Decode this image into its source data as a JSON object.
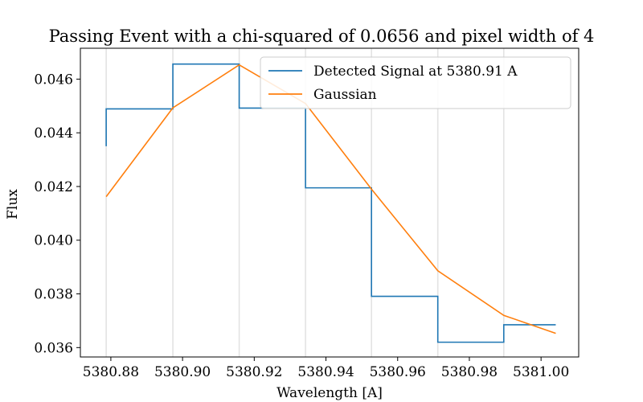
{
  "chart_data": {
    "type": "line",
    "title": "Passing Event with a chi-squared of 0.0656 and pixel width of 4",
    "xlabel": "Wavelength [A]",
    "ylabel": "Flux",
    "xlim": [
      5380.8715,
      5381.0105
    ],
    "ylim": [
      0.03565,
      0.04715
    ],
    "xticks": [
      5380.88,
      5380.9,
      5380.92,
      5380.94,
      5380.96,
      5380.98,
      5381.0
    ],
    "xtick_labels": [
      "5380.88",
      "5380.90",
      "5380.92",
      "5380.94",
      "5380.96",
      "5380.98",
      "5381.00"
    ],
    "yticks": [
      0.036,
      0.038,
      0.04,
      0.042,
      0.044,
      0.046
    ],
    "ytick_labels": [
      "0.036",
      "0.038",
      "0.040",
      "0.042",
      "0.044",
      "0.046"
    ],
    "vlines": [
      5380.8787,
      5380.8973,
      5380.9158,
      5380.9343,
      5380.9527,
      5380.9712,
      5380.9896
    ],
    "grid": false,
    "legend_position": "top-right",
    "series": [
      {
        "name": "Detected Signal at 5380.91 A",
        "style": "step",
        "color": "#1f77b4",
        "x": [
          5380.8787,
          5380.8973,
          5380.9158,
          5380.9343,
          5380.9527,
          5380.9712,
          5380.9896,
          5381.0041
        ],
        "y": [
          0.0435,
          0.04489,
          0.04656,
          0.04492,
          0.04195,
          0.03791,
          0.0362,
          0.03685
        ],
        "first_step_x": 5380.8787,
        "first_step_y": 0.04489
      },
      {
        "name": "Gaussian",
        "style": "line",
        "color": "#ff7f0e",
        "x": [
          5380.8787,
          5380.8973,
          5380.9158,
          5380.9343,
          5380.9527,
          5380.9712,
          5380.9896,
          5381.0041
        ],
        "y": [
          0.04162,
          0.04493,
          0.04653,
          0.04509,
          0.0419,
          0.03886,
          0.0372,
          0.03653
        ]
      }
    ]
  }
}
